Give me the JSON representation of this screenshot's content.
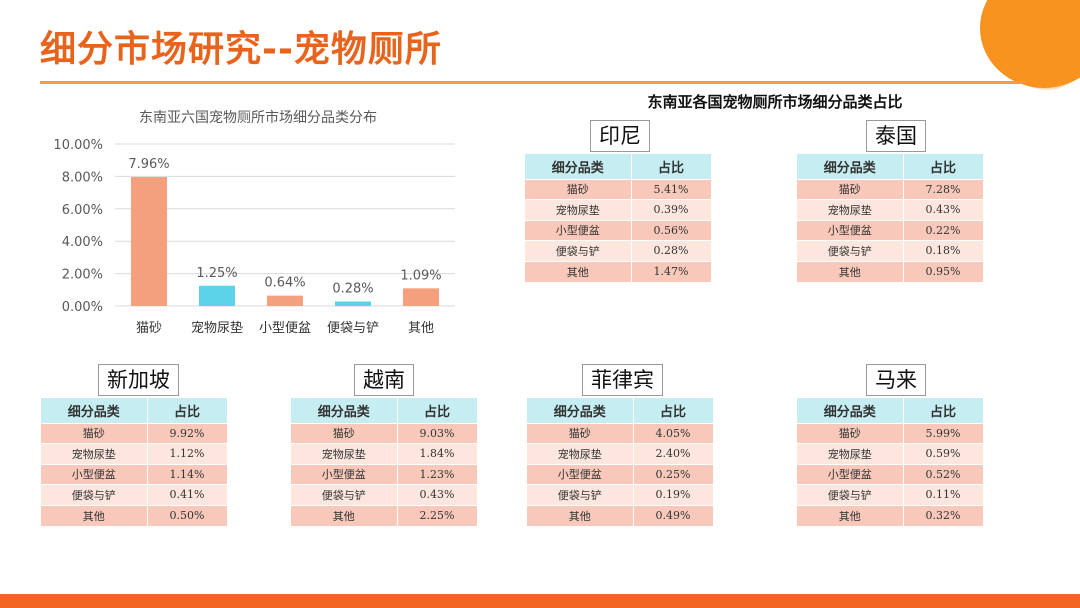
{
  "title": "细分市场研究--宠物厕所",
  "chart_data": {
    "type": "bar",
    "title": "东南亚六国宠物厕所市场细分品类分布",
    "categories": [
      "猫砂",
      "宠物尿垫",
      "小型便盆",
      "便袋与铲",
      "其他"
    ],
    "values": [
      7.96,
      1.25,
      0.64,
      0.28,
      1.09
    ],
    "data_labels": [
      "7.96%",
      "1.25%",
      "0.64%",
      "0.28%",
      "1.09%"
    ],
    "bar_colors": [
      "#f4a07e",
      "#5dd3ea",
      "#f4a07e",
      "#5dd3ea",
      "#f4a07e"
    ],
    "ylim": [
      0,
      10
    ],
    "y_ticks": [
      "0.00%",
      "2.00%",
      "4.00%",
      "6.00%",
      "8.00%",
      "10.00%"
    ],
    "grid": true,
    "xlabel": "",
    "ylabel": ""
  },
  "tables_title": "东南亚各国宠物厕所市场细分品类占比",
  "table_headers": [
    "细分品类",
    "占比"
  ],
  "countries": [
    {
      "name": "印尼",
      "rows": [
        [
          "猫砂",
          "5.41%"
        ],
        [
          "宠物尿垫",
          "0.39%"
        ],
        [
          "小型便盆",
          "0.56%"
        ],
        [
          "便袋与铲",
          "0.28%"
        ],
        [
          "其他",
          "1.47%"
        ]
      ]
    },
    {
      "name": "泰国",
      "rows": [
        [
          "猫砂",
          "7.28%"
        ],
        [
          "宠物尿垫",
          "0.43%"
        ],
        [
          "小型便盆",
          "0.22%"
        ],
        [
          "便袋与铲",
          "0.18%"
        ],
        [
          "其他",
          "0.95%"
        ]
      ]
    },
    {
      "name": "新加坡",
      "rows": [
        [
          "猫砂",
          "9.92%"
        ],
        [
          "宠物尿垫",
          "1.12%"
        ],
        [
          "小型便盆",
          "1.14%"
        ],
        [
          "便袋与铲",
          "0.41%"
        ],
        [
          "其他",
          "0.50%"
        ]
      ]
    },
    {
      "name": "越南",
      "rows": [
        [
          "猫砂",
          "9.03%"
        ],
        [
          "宠物尿垫",
          "1.84%"
        ],
        [
          "小型便盆",
          "1.23%"
        ],
        [
          "便袋与铲",
          "0.43%"
        ],
        [
          "其他",
          "2.25%"
        ]
      ]
    },
    {
      "name": "菲律宾",
      "rows": [
        [
          "猫砂",
          "4.05%"
        ],
        [
          "宠物尿垫",
          "2.40%"
        ],
        [
          "小型便盆",
          "0.25%"
        ],
        [
          "便袋与铲",
          "0.19%"
        ],
        [
          "其他",
          "0.49%"
        ]
      ]
    },
    {
      "name": "马来",
      "rows": [
        [
          "猫砂",
          "5.99%"
        ],
        [
          "宠物尿垫",
          "0.59%"
        ],
        [
          "小型便盆",
          "0.52%"
        ],
        [
          "便袋与铲",
          "0.11%"
        ],
        [
          "其他",
          "0.32%"
        ]
      ]
    }
  ]
}
